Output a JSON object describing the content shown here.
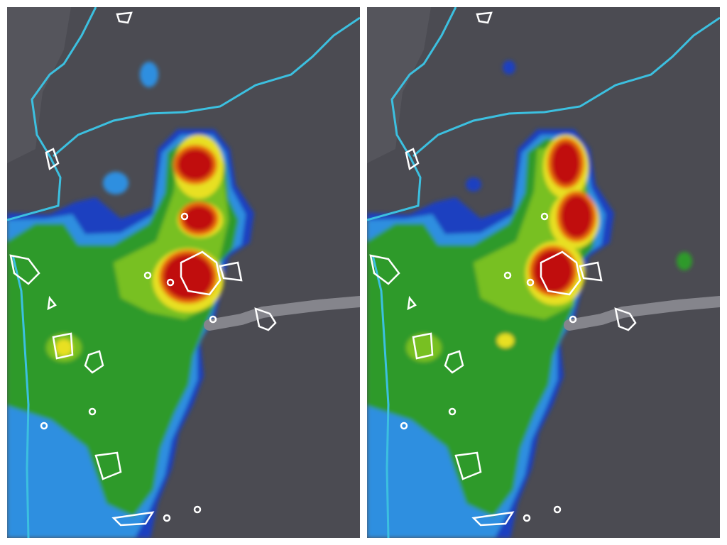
{
  "panels": [
    {
      "id": "left",
      "variant": "before"
    },
    {
      "id": "right",
      "variant": "after"
    }
  ],
  "colors": {
    "background": "#4b4b52",
    "outer_blue": "#1f3fc0",
    "light_blue": "#2f8fe0",
    "green": "#2f9a2a",
    "light_green": "#78c020",
    "yellow": "#e8e020",
    "orange": "#e86a10",
    "red": "#c01010",
    "river_cyan": "#3cc0e0",
    "outline_white": "#ffffff",
    "road_gray": "#85858c"
  }
}
